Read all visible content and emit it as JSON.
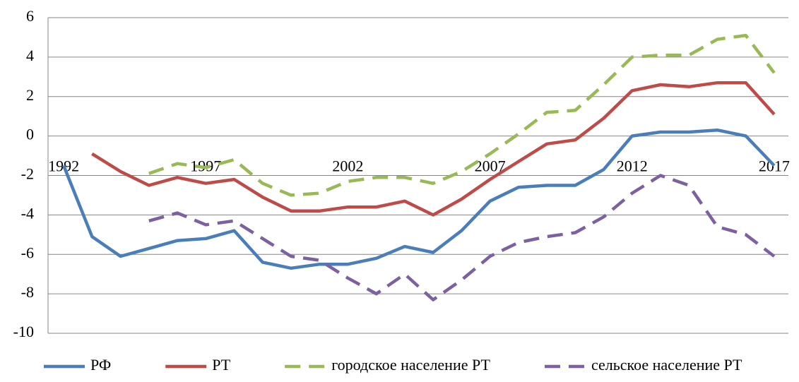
{
  "chart_data": {
    "type": "line",
    "categories": [
      "1992",
      null,
      null,
      null,
      null,
      "1997",
      null,
      null,
      null,
      null,
      "2002",
      null,
      null,
      null,
      null,
      "2007",
      null,
      null,
      null,
      null,
      "2012",
      null,
      null,
      null,
      null,
      "2017"
    ],
    "ylim": [
      -10,
      6
    ],
    "yticks": [
      -10,
      -8,
      -6,
      -4,
      -2,
      0,
      2,
      4,
      6
    ],
    "grid": true,
    "legend": "bottom",
    "series": [
      {
        "name": "РФ",
        "color": "#4a7ebb",
        "dashed": false,
        "values": [
          -1.5,
          -5.1,
          -6.1,
          -5.7,
          -5.3,
          -5.2,
          -4.8,
          -6.4,
          -6.7,
          -6.5,
          -6.5,
          -6.2,
          -5.6,
          -5.9,
          -4.8,
          -3.3,
          -2.6,
          -2.5,
          -2.5,
          -1.7,
          0.0,
          0.2,
          0.2,
          0.3,
          0.0,
          -1.5
        ]
      },
      {
        "name": "РТ",
        "color": "#be4b48",
        "dashed": false,
        "values": [
          null,
          -0.9,
          -1.8,
          -2.5,
          -2.1,
          -2.4,
          -2.2,
          -3.1,
          -3.8,
          -3.8,
          -3.6,
          -3.6,
          -3.3,
          -4.0,
          -3.2,
          -2.2,
          -1.3,
          -0.4,
          -0.2,
          0.9,
          2.3,
          2.6,
          2.5,
          2.7,
          2.7,
          1.1
        ]
      },
      {
        "name": "городское население РТ",
        "color": "#98b954",
        "dashed": true,
        "values": [
          null,
          null,
          null,
          -1.9,
          -1.4,
          -1.6,
          -1.2,
          -2.4,
          -3.0,
          -2.9,
          -2.3,
          -2.1,
          -2.1,
          -2.4,
          -1.8,
          -0.9,
          0.1,
          1.2,
          1.3,
          2.6,
          4.0,
          4.1,
          4.1,
          4.9,
          5.1,
          3.2
        ]
      },
      {
        "name": "сельское население РТ",
        "color": "#7d60a0",
        "dashed": true,
        "values": [
          null,
          null,
          null,
          -4.3,
          -3.9,
          -4.5,
          -4.3,
          -5.2,
          -6.1,
          -6.3,
          -7.2,
          -8.0,
          -7.0,
          -8.3,
          -7.3,
          -6.1,
          -5.4,
          -5.1,
          -4.9,
          -4.1,
          -2.9,
          -2.0,
          -2.5,
          -4.6,
          -5.0,
          -6.1
        ]
      }
    ]
  }
}
